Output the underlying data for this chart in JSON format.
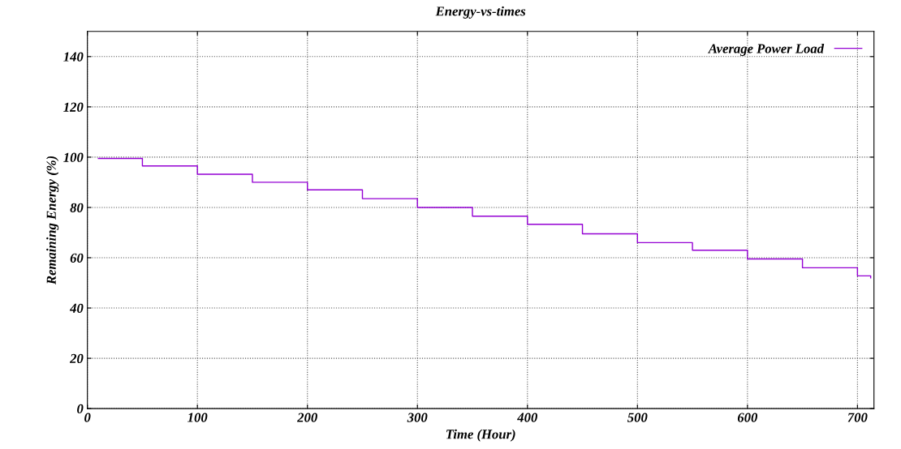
{
  "chart_data": {
    "type": "step",
    "title": "Energy-vs-times",
    "xlabel": "Time (Hour)",
    "ylabel": "Remaining Energy (%)",
    "x": [
      10,
      50,
      100,
      150,
      200,
      250,
      300,
      350,
      400,
      450,
      500,
      550,
      600,
      650,
      700,
      712
    ],
    "series": [
      {
        "name": "Average Power Load",
        "color": "#9400d3",
        "values": [
          99.5,
          96.5,
          93.2,
          90,
          87,
          83.5,
          80,
          76.5,
          73.3,
          69.5,
          66,
          63,
          59.5,
          56,
          52.8,
          52
        ]
      }
    ],
    "xlim": [
      0,
      715
    ],
    "ylim": [
      0,
      150
    ],
    "xticks": [
      0,
      100,
      200,
      300,
      400,
      500,
      600,
      700
    ],
    "yticks": [
      0,
      20,
      40,
      60,
      80,
      100,
      120,
      140
    ],
    "grid": true,
    "legend": "top right",
    "marker": "none",
    "line_style": "solid"
  }
}
